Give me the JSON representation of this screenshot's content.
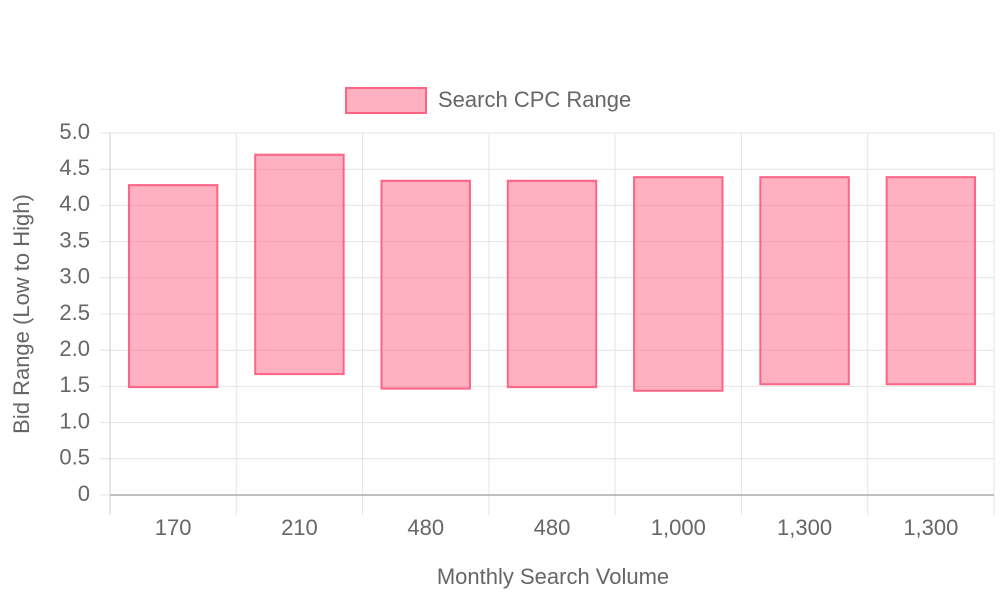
{
  "chart_data": {
    "type": "floating-bar",
    "x_label": "Monthly Search Volume",
    "y_label": "Bid Range (Low to High)",
    "categories": [
      "170",
      "210",
      "480",
      "480",
      "1,000",
      "1,300",
      "1,300"
    ],
    "series": [
      {
        "name": "Search CPC Range",
        "color": "#ff6384",
        "low": [
          1.49,
          1.67,
          1.47,
          1.49,
          1.44,
          1.53,
          1.53
        ],
        "high": [
          4.28,
          4.7,
          4.34,
          4.34,
          4.39,
          4.39,
          4.39
        ]
      }
    ],
    "ylim": [
      0,
      5
    ],
    "yticks": [
      0,
      0.5,
      {
        "value": 1,
        "label": "1.0"
      },
      1.5,
      {
        "value": 2,
        "label": "2.0"
      },
      2.5,
      {
        "value": 3,
        "label": "3.0"
      },
      3.5,
      {
        "value": 4,
        "label": "4.0"
      },
      4.5,
      {
        "value": 5,
        "label": "5.0"
      }
    ],
    "grid": true,
    "legend": "top"
  }
}
